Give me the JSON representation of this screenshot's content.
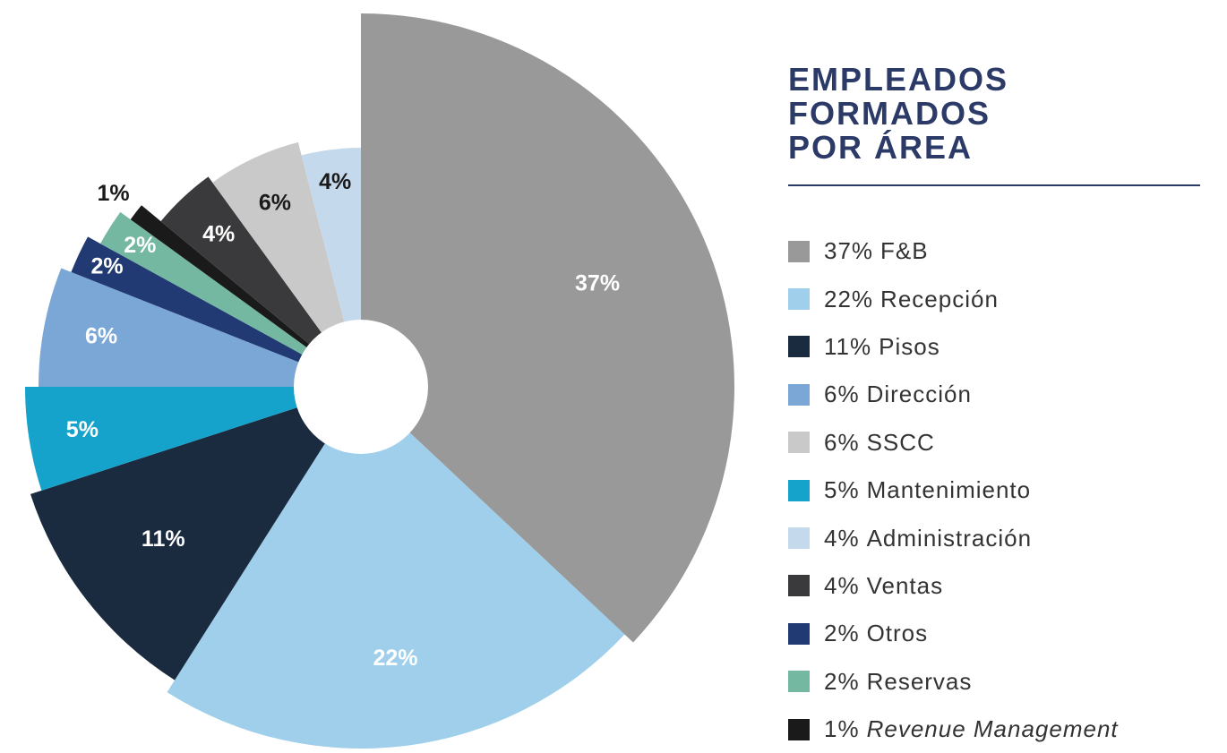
{
  "chart_data": {
    "type": "pie",
    "title": "EMPLEADOS FORMADOS POR ÁREA",
    "categories": [
      "F&B",
      "Recepción",
      "Pisos",
      "Dirección",
      "SSCC",
      "Mantenimiento",
      "Administración",
      "Ventas",
      "Otros",
      "Reservas",
      "Revenue Management"
    ],
    "values": [
      37,
      22,
      11,
      6,
      6,
      5,
      4,
      4,
      2,
      2,
      1
    ],
    "value_labels": [
      "37%",
      "22%",
      "11%",
      "6%",
      "6%",
      "5%",
      "4%",
      "4%",
      "2%",
      "2%",
      "1%"
    ],
    "colors": [
      "#9a999a",
      "#9fcfea",
      "#1a2b40",
      "#7ba7d6",
      "#c9c9c9",
      "#16a3cb",
      "#c5d9ec",
      "#3a3a3c",
      "#213a73",
      "#74b8a2",
      "#1a1a1a"
    ]
  }
}
